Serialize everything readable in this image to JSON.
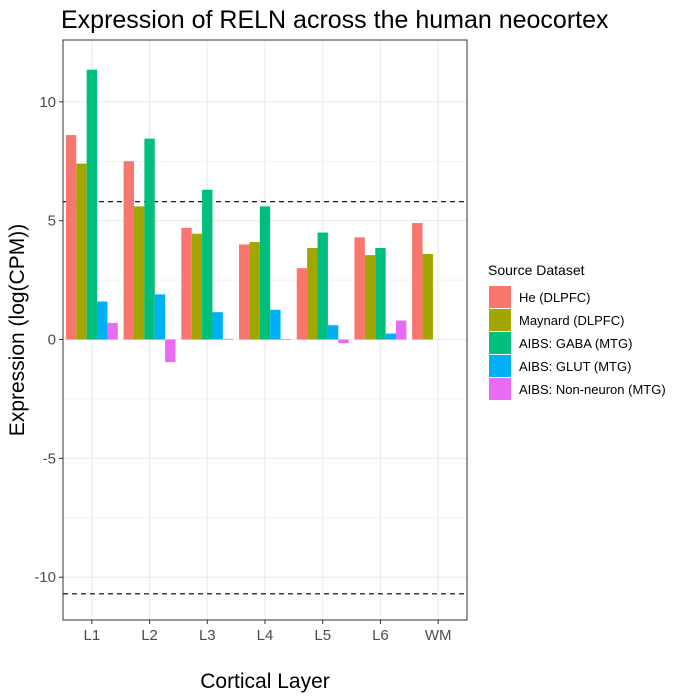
{
  "chart_data": {
    "type": "bar",
    "title": "Expression of RELN across the human neocortex",
    "xlabel": "Cortical Layer",
    "ylabel": "Expression (log(CPM))",
    "categories": [
      "L1",
      "L2",
      "L3",
      "L4",
      "L5",
      "L6",
      "WM"
    ],
    "ylim": [
      -11.8,
      12.6
    ],
    "yticks": [
      -10,
      -5,
      0,
      5,
      10
    ],
    "grid": true,
    "legend_position": "right",
    "legend_title": "Source Dataset",
    "reference_lines": [
      5.8,
      -10.7
    ],
    "series": [
      {
        "name": "He (DLPFC)",
        "color": "#F8766D",
        "values": [
          8.6,
          7.5,
          4.7,
          4.0,
          3.0,
          4.3,
          4.9
        ]
      },
      {
        "name": "Maynard (DLPFC)",
        "color": "#A3A500",
        "values": [
          7.4,
          5.6,
          4.45,
          4.1,
          3.85,
          3.55,
          3.6
        ]
      },
      {
        "name": "AIBS: GABA (MTG)",
        "color": "#00BF7D",
        "values": [
          11.35,
          8.45,
          6.3,
          5.6,
          4.5,
          3.85,
          null
        ]
      },
      {
        "name": "AIBS: GLUT (MTG)",
        "color": "#00B0F6",
        "values": [
          1.6,
          1.9,
          1.15,
          1.25,
          0.6,
          0.25,
          null
        ]
      },
      {
        "name": "AIBS: Non-neuron (MTG)",
        "color": "#E76BF3",
        "values": [
          0.7,
          -0.95,
          0.03,
          0.02,
          -0.15,
          0.8,
          null
        ]
      }
    ]
  }
}
